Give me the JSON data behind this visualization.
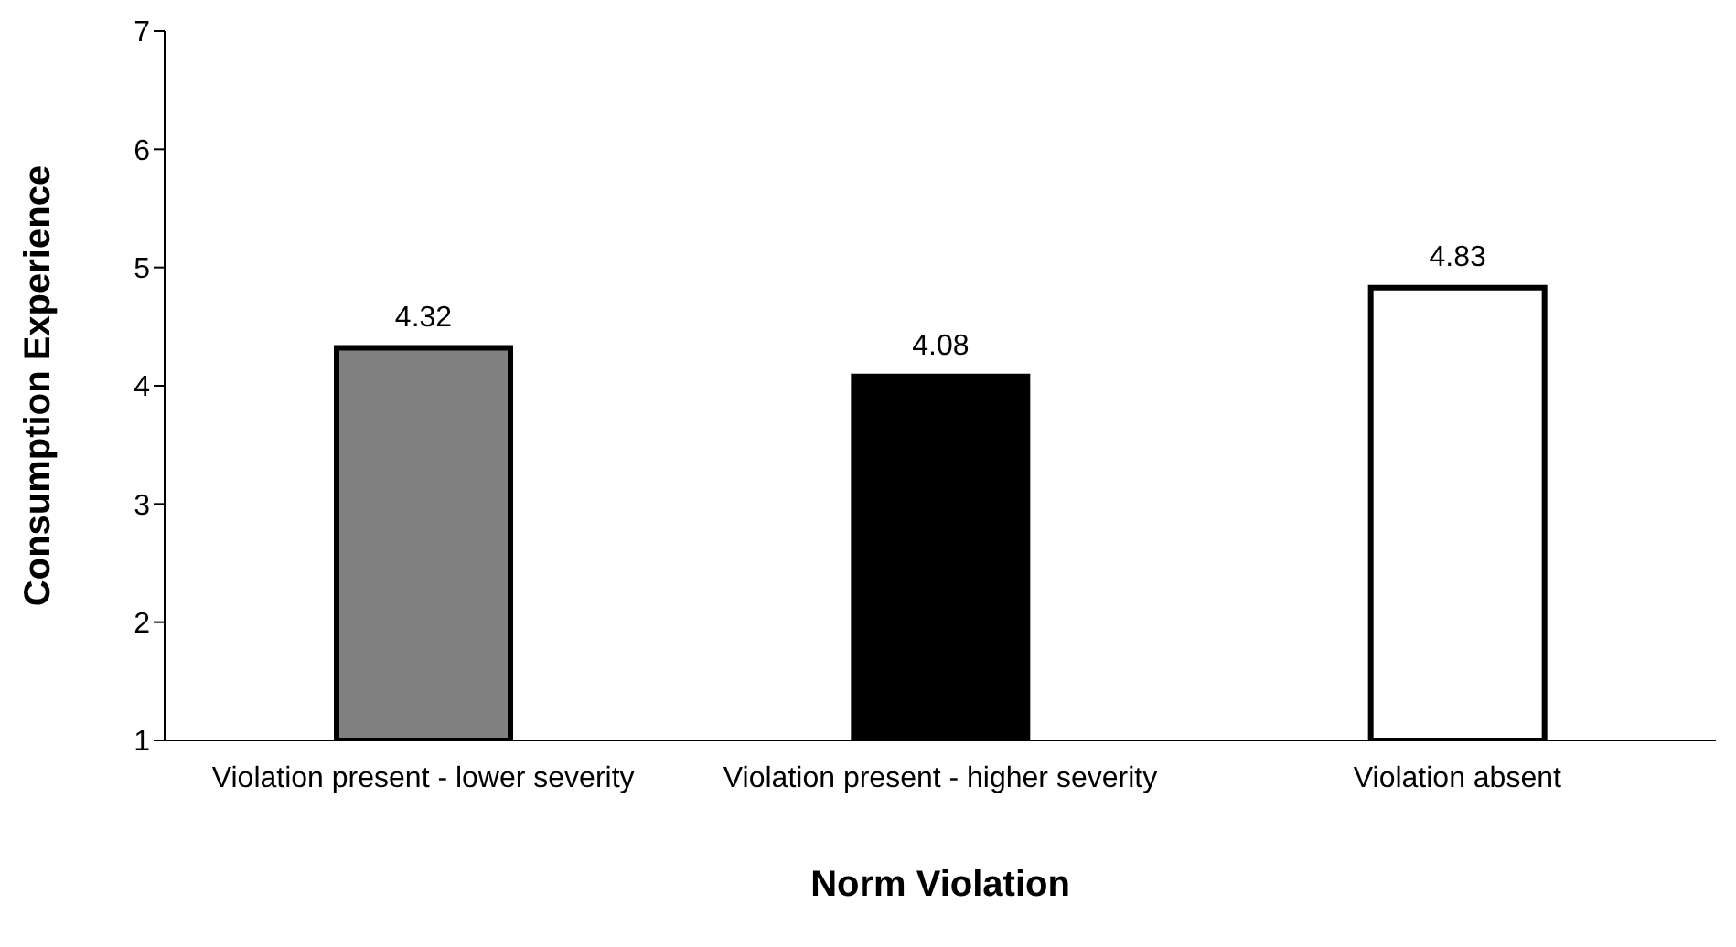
{
  "chart_data": {
    "type": "bar",
    "xlabel": "Norm Violation",
    "ylabel": "Consumption Experience",
    "categories": [
      "Violation present - lower severity",
      "Violation present - higher severity",
      "Violation absent"
    ],
    "values": [
      4.32,
      4.08,
      4.83
    ],
    "colors": [
      "#808080",
      "#000000",
      "#ffffff"
    ],
    "ylim": [
      1,
      7
    ],
    "yticks": [
      1,
      2,
      3,
      4,
      5,
      6,
      7
    ],
    "grid": false,
    "legend": false,
    "data_labels": true
  }
}
